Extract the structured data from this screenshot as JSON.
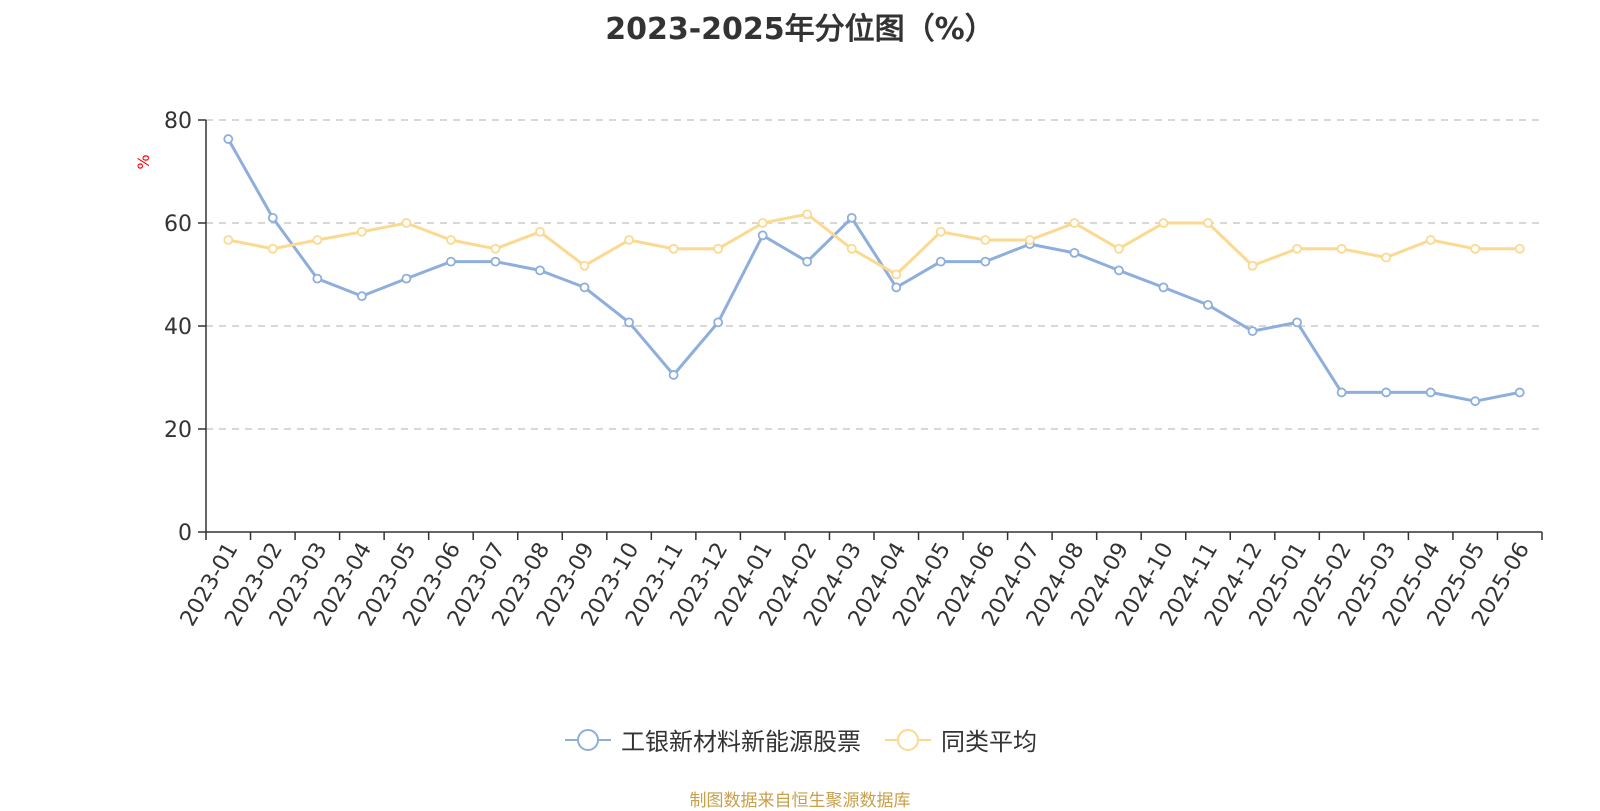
{
  "chart_data": {
    "type": "line",
    "title": "2023-2025年分位图（%）",
    "ylabel": "%",
    "ylim": [
      0,
      80
    ],
    "yticks": [
      0,
      20,
      40,
      60,
      80
    ],
    "grid": true,
    "legend": "bottom-center",
    "categories": [
      "2023-01",
      "2023-02",
      "2023-03",
      "2023-04",
      "2023-05",
      "2023-06",
      "2023-07",
      "2023-08",
      "2023-09",
      "2023-10",
      "2023-11",
      "2023-12",
      "2024-01",
      "2024-02",
      "2024-03",
      "2024-04",
      "2024-05",
      "2024-06",
      "2024-07",
      "2024-08",
      "2024-09",
      "2024-10",
      "2024-11",
      "2024-12",
      "2025-01",
      "2025-02",
      "2025-03",
      "2025-04",
      "2025-05",
      "2025-06"
    ],
    "series": [
      {
        "name": "工银新材料新能源股票",
        "color": "#8eaedb",
        "values": [
          76.3,
          61.0,
          49.2,
          45.8,
          49.2,
          52.5,
          52.5,
          50.8,
          47.5,
          40.7,
          30.5,
          40.7,
          57.6,
          52.5,
          61.0,
          47.5,
          52.5,
          52.5,
          55.9,
          54.2,
          50.8,
          47.5,
          44.1,
          39.0,
          40.7,
          27.1,
          27.1,
          27.1,
          25.4,
          27.1
        ]
      },
      {
        "name": "同类平均",
        "color": "#fbd990",
        "values": [
          56.7,
          55.0,
          56.7,
          58.3,
          60.0,
          56.7,
          55.0,
          58.3,
          51.7,
          56.7,
          55.0,
          55.0,
          60.0,
          61.7,
          55.0,
          50.0,
          58.3,
          56.7,
          56.7,
          60.0,
          55.0,
          60.0,
          60.0,
          51.7,
          55.0,
          55.0,
          53.3,
          56.7,
          55.0,
          55.0
        ]
      }
    ]
  },
  "footer": "制图数据来自恒生聚源数据库"
}
